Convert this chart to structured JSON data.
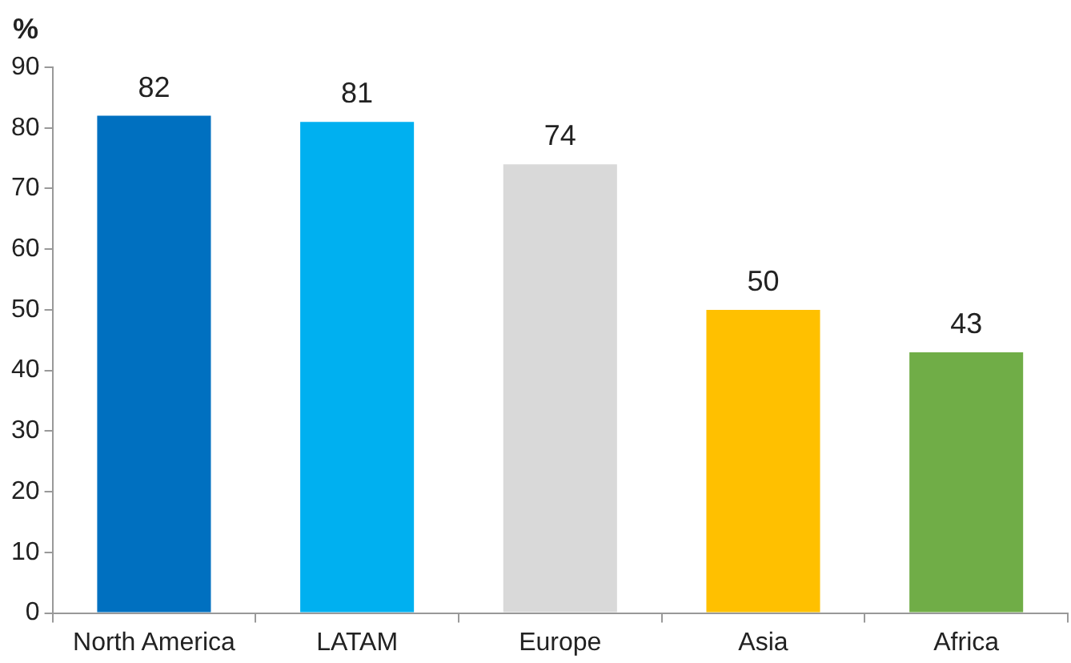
{
  "chart_data": {
    "type": "bar",
    "ylabel": "%",
    "categories": [
      "North America",
      "LATAM",
      "Europe",
      "Asia",
      "Africa"
    ],
    "values": [
      82,
      81,
      74,
      50,
      43
    ],
    "colors": [
      "#0070c0",
      "#00b0f0",
      "#d9d9d9",
      "#ffc000",
      "#70ad47"
    ],
    "ylim": [
      0,
      90
    ],
    "yticks": [
      0,
      10,
      20,
      30,
      40,
      50,
      60,
      70,
      80,
      90
    ],
    "grid": false,
    "data_labels": true
  }
}
